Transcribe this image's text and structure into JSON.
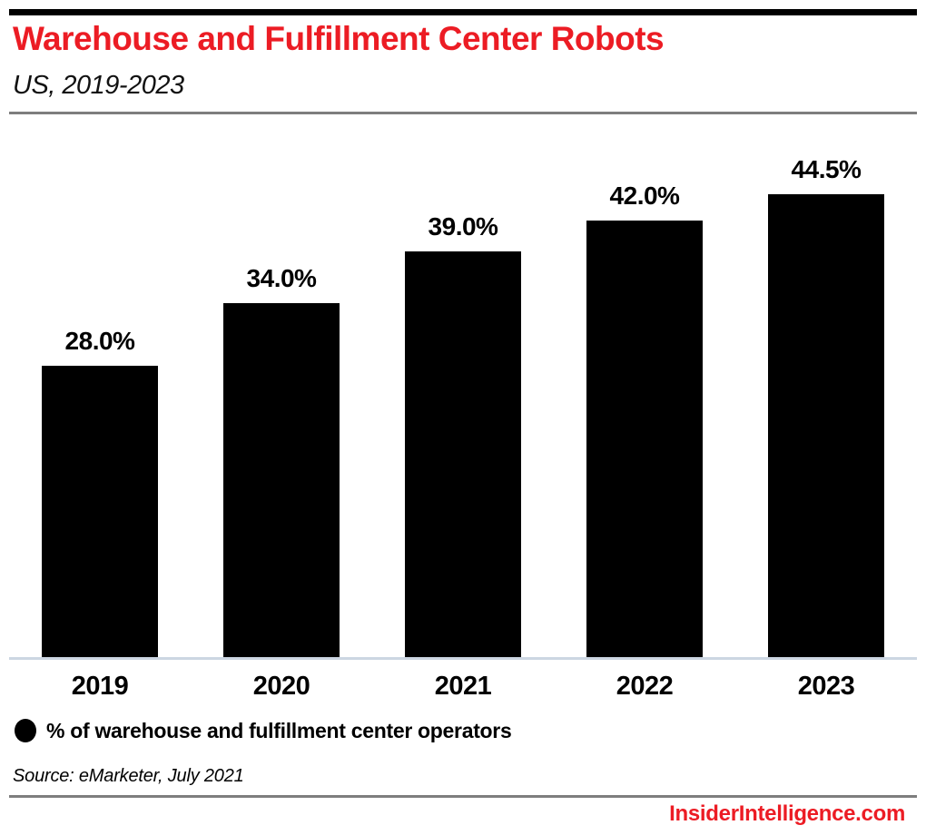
{
  "header": {
    "title": "Warehouse and Fulfillment Center Robots",
    "subtitle": "US, 2019-2023"
  },
  "chart_data": {
    "type": "bar",
    "title": "Warehouse and Fulfillment Center Robots",
    "subtitle": "US, 2019-2023",
    "categories": [
      "2019",
      "2020",
      "2021",
      "2022",
      "2023"
    ],
    "values": [
      28.0,
      34.0,
      39.0,
      42.0,
      44.5
    ],
    "value_labels": [
      "28.0%",
      "34.0%",
      "39.0%",
      "42.0%",
      "44.5%"
    ],
    "series_name": "% of warehouse and fulfillment center operators",
    "bar_color": "#000000",
    "ylim": [
      0,
      50
    ],
    "grid": false,
    "legend_position": "bottom-left"
  },
  "legend": {
    "label": "% of warehouse and fulfillment center operators",
    "marker_color": "#000000"
  },
  "footer": {
    "source": "Source: eMarketer, July 2021",
    "site": "InsiderIntelligence.com"
  },
  "colors": {
    "accent_red": "#ec1c24",
    "bar_black": "#000000",
    "axis_line": "#ccd6e2",
    "divider_gray": "#7e7e7e"
  }
}
